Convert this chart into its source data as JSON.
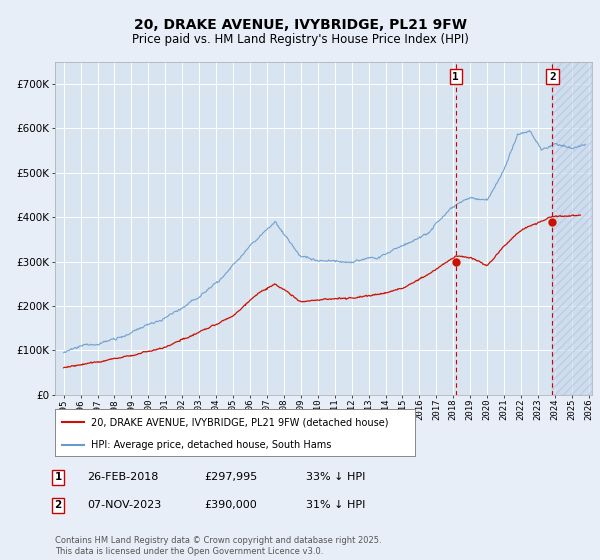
{
  "title_line1": "20, DRAKE AVENUE, IVYBRIDGE, PL21 9FW",
  "title_line2": "Price paid vs. HM Land Registry's House Price Index (HPI)",
  "ylim": [
    0,
    750000
  ],
  "yticks": [
    0,
    100000,
    200000,
    300000,
    400000,
    500000,
    600000,
    700000
  ],
  "ytick_labels": [
    "£0",
    "£100K",
    "£200K",
    "£300K",
    "£400K",
    "£500K",
    "£600K",
    "£700K"
  ],
  "xlim_start": 1994.5,
  "xlim_end": 2026.2,
  "xtick_years": [
    1995,
    1996,
    1997,
    1998,
    1999,
    2000,
    2001,
    2002,
    2003,
    2004,
    2005,
    2006,
    2007,
    2008,
    2009,
    2010,
    2011,
    2012,
    2013,
    2014,
    2015,
    2016,
    2017,
    2018,
    2019,
    2020,
    2021,
    2022,
    2023,
    2024,
    2025,
    2026
  ],
  "legend_entry1": "20, DRAKE AVENUE, IVYBRIDGE, PL21 9FW (detached house)",
  "legend_entry2": "HPI: Average price, detached house, South Hams",
  "sale1_date_x": 2018.15,
  "sale1_price": 297995,
  "sale1_label": "1",
  "sale2_date_x": 2023.85,
  "sale2_price": 390000,
  "sale2_label": "2",
  "vline_color": "#cc0000",
  "vline_style": "--",
  "background_color": "#e8eef8",
  "plot_bg_color": "#d8e4f0",
  "plot_bg_color_hatched": "#c8d8ec",
  "grid_color": "#ffffff",
  "hpi_color": "#6699cc",
  "price_color": "#cc1100",
  "footnote": "Contains HM Land Registry data © Crown copyright and database right 2025.\nThis data is licensed under the Open Government Licence v3.0."
}
